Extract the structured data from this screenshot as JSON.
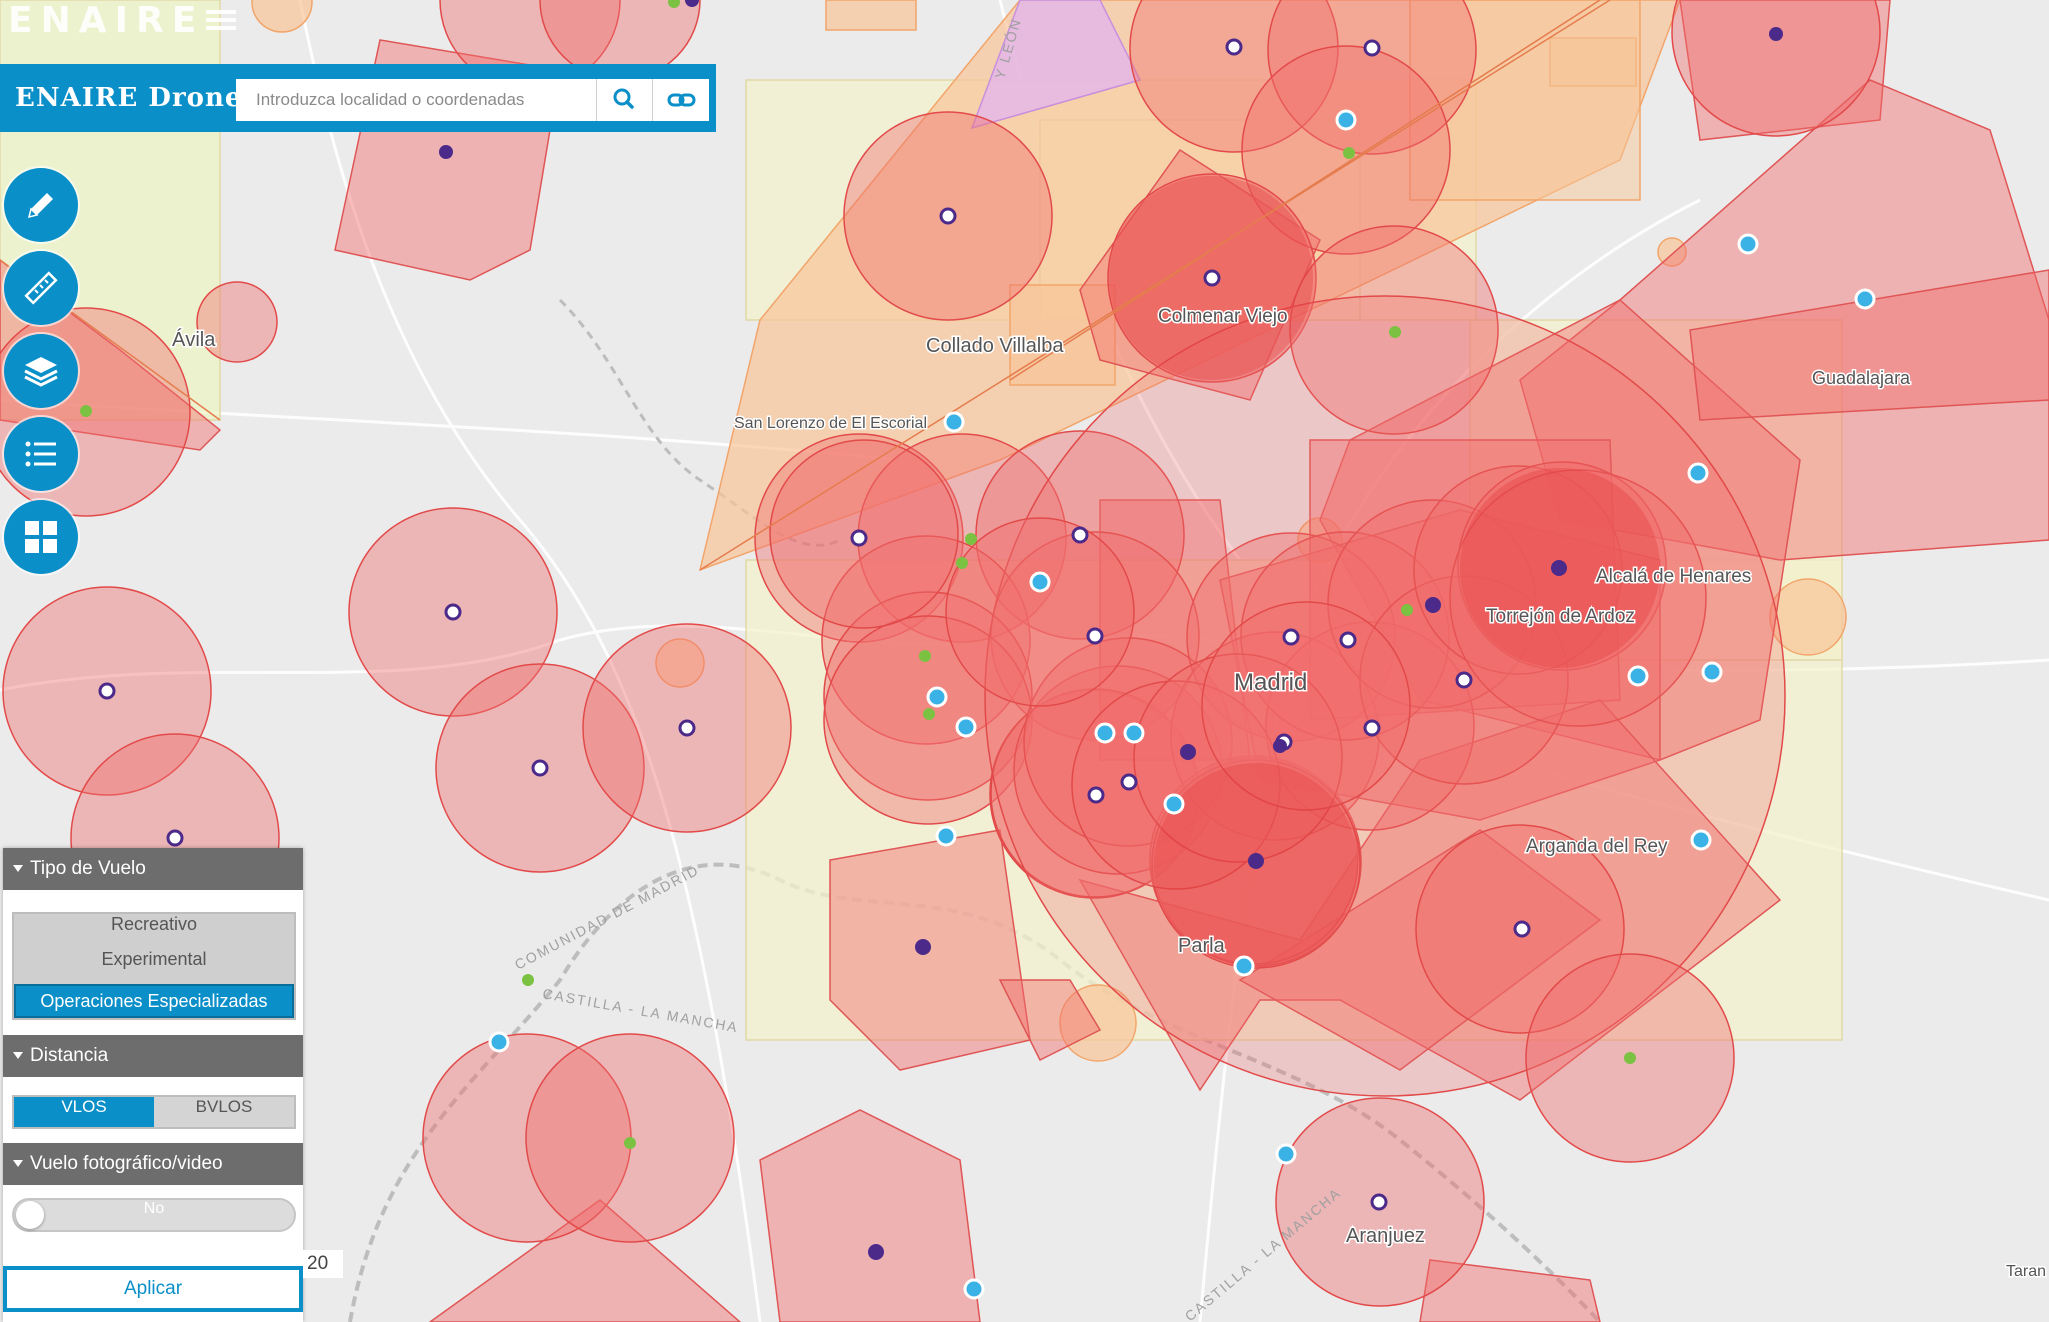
{
  "header": {
    "brand_top": "ENAIRE",
    "app_title": "ENAIRE Drones",
    "search_placeholder": "Introduzca localidad o coordenadas",
    "search_icon": "search-icon",
    "link_icon": "link-icon"
  },
  "toolbar": {
    "tools": [
      {
        "name": "draw-tool",
        "icon": "pencil-icon"
      },
      {
        "name": "measure-tool",
        "icon": "ruler-icon"
      },
      {
        "name": "layers-tool",
        "icon": "layers-icon"
      },
      {
        "name": "legend-tool",
        "icon": "list-icon"
      },
      {
        "name": "basemap-tool",
        "icon": "grid-icon"
      }
    ]
  },
  "map": {
    "labels": {
      "avila": "Ávila",
      "collado_villalba": "Collado Villalba",
      "san_lorenzo": "San Lorenzo de El Escorial",
      "colmenar_viejo": "Colmenar Viejo",
      "guadalajara": "Guadalajara",
      "alcala": "Alcalá de Henares",
      "torrejon": "Torrejón de Ardoz",
      "madrid": "Madrid",
      "arganda": "Arganda del Rey",
      "parla": "Parla",
      "aranjuez": "Aranjuez",
      "comunidad": "COMUNIDAD DE MADRID",
      "castilla": "CASTILLA - LA MANCHA",
      "taran": "Taran",
      "castilla_leon": "Y LEÓN",
      "castilla_mancha_bottom": "CASTILLA - LA MANCHA"
    },
    "colors": {
      "base": "#ebebeb",
      "red_zone": "#f16d6d",
      "orange_zone": "#f6b07a",
      "yellow_zone": "#f3f0cc",
      "purple_zone": "#d9a6e8",
      "marker_purple": "#4b2a8a",
      "marker_green": "#7bc142",
      "marker_blue": "#3ab2e6"
    }
  },
  "filters": {
    "flight_type": {
      "header": "Tipo de Vuelo",
      "options": [
        "Recreativo",
        "Experimental",
        "Operaciones Especializadas"
      ],
      "selected": "Operaciones Especializadas"
    },
    "distance": {
      "header": "Distancia",
      "options": [
        "VLOS",
        "BVLOS"
      ],
      "selected": "VLOS"
    },
    "photo_video": {
      "header": "Vuelo fotográfico/video",
      "value": "No"
    },
    "apply_label": "Aplicar"
  },
  "scale_fragment": "20"
}
